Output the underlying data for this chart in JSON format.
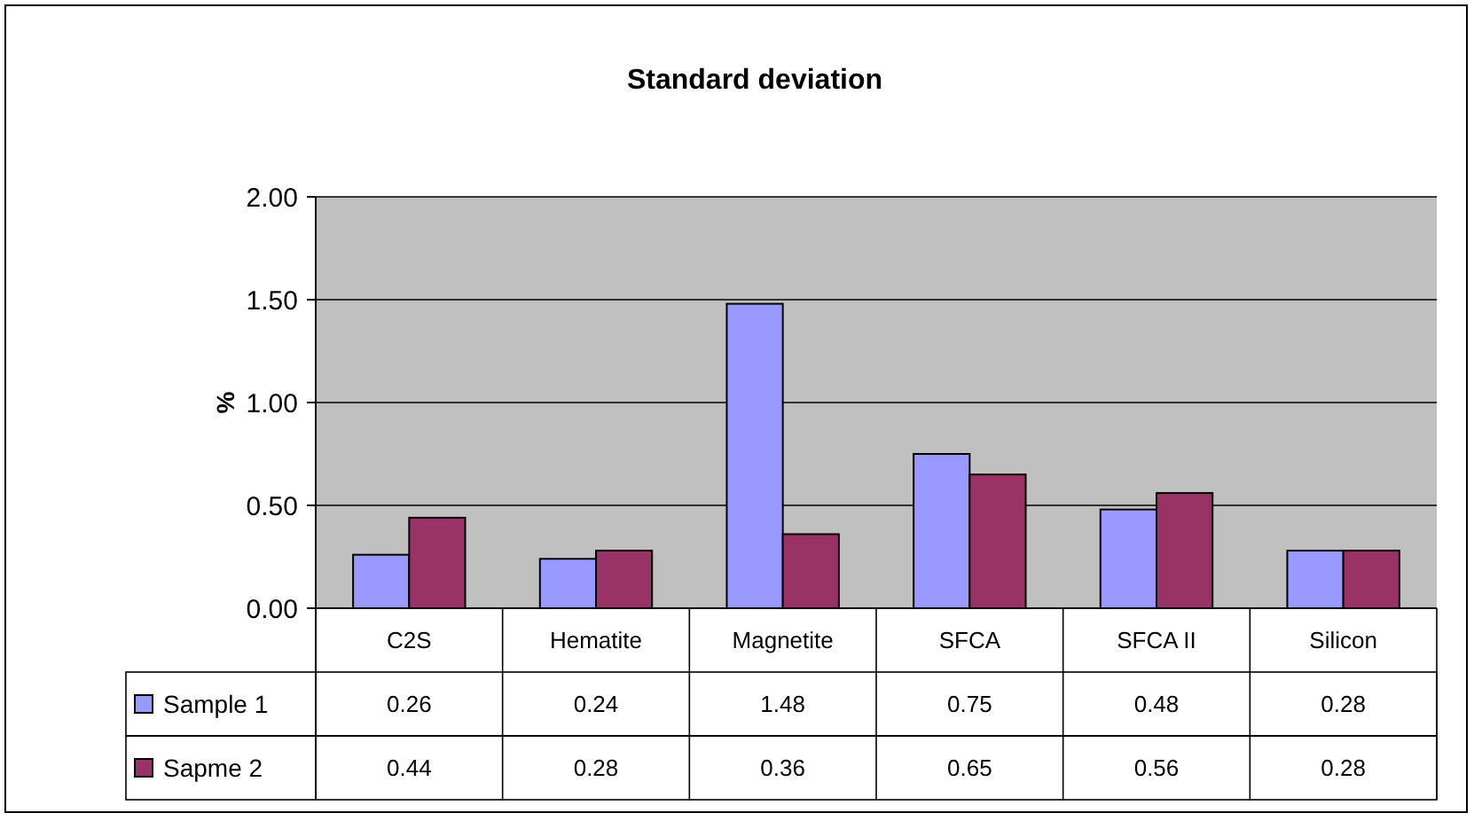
{
  "chart_data": {
    "type": "bar",
    "title": "Standard deviation",
    "ylabel": "%",
    "categories": [
      "C2S",
      "Hematite",
      "Magnetite",
      "SFCA",
      "SFCA II",
      "Silicon"
    ],
    "series": [
      {
        "name": "Sample 1",
        "color": "#9999ff",
        "values": [
          0.26,
          0.24,
          1.48,
          0.75,
          0.48,
          0.28
        ]
      },
      {
        "name": "Sapme 2",
        "color": "#993366",
        "values": [
          0.44,
          0.28,
          0.36,
          0.65,
          0.56,
          0.28
        ]
      }
    ],
    "value_labels": [
      [
        "0.26",
        "0.24",
        "1.48",
        "0.75",
        "0.48",
        "0.28"
      ],
      [
        "0.44",
        "0.28",
        "0.36",
        "0.65",
        "0.56",
        "0.28"
      ]
    ],
    "ylim": [
      0,
      2
    ],
    "yticks": [
      {
        "value": 0,
        "label": "0.00"
      },
      {
        "value": 0.5,
        "label": "0.50"
      },
      {
        "value": 1,
        "label": "1.00"
      },
      {
        "value": 1.5,
        "label": "1.50"
      },
      {
        "value": 2,
        "label": "2.00"
      }
    ],
    "grid": "y",
    "data_labels": true,
    "legend": "bottom"
  }
}
